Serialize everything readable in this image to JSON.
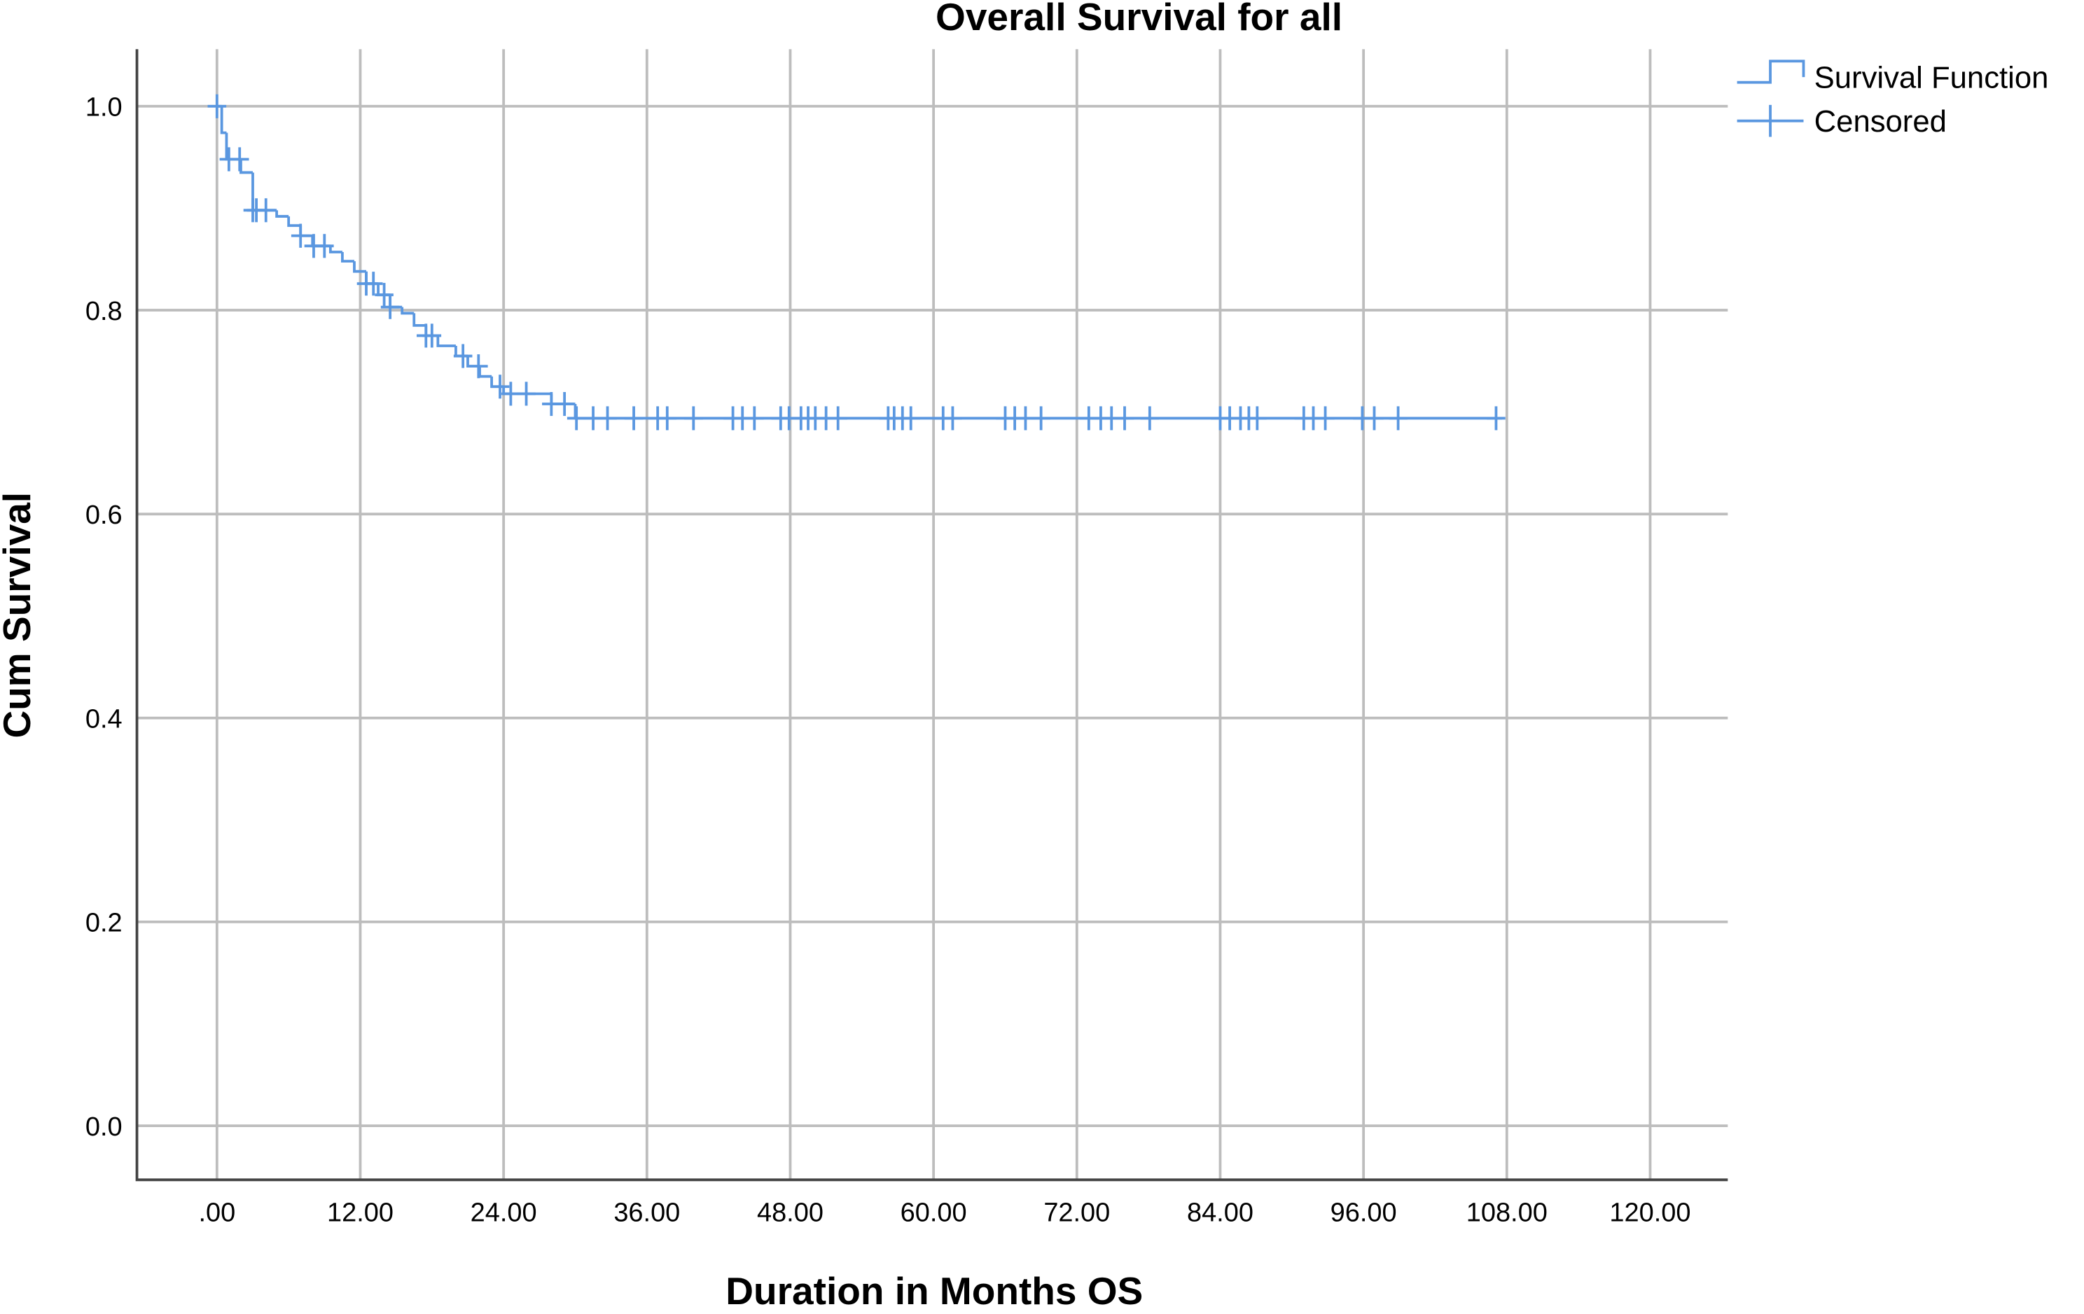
{
  "chart_data": {
    "type": "step",
    "title": "Overall Survival for all",
    "x_label": "Duration in Months OS",
    "y_label": "Cum Survival",
    "xlim": [
      -6.7,
      126.5
    ],
    "ylim": [
      -0.053,
      1.056
    ],
    "xticks": [
      {
        "value": 0,
        "label": ".00"
      },
      {
        "value": 12,
        "label": "12.00"
      },
      {
        "value": 24,
        "label": "24.00"
      },
      {
        "value": 36,
        "label": "36.00"
      },
      {
        "value": 48,
        "label": "48.00"
      },
      {
        "value": 60,
        "label": "60.00"
      },
      {
        "value": 72,
        "label": "72.00"
      },
      {
        "value": 84,
        "label": "84.00"
      },
      {
        "value": 96,
        "label": "96.00"
      },
      {
        "value": 108,
        "label": "108.00"
      },
      {
        "value": 120,
        "label": "120.00"
      }
    ],
    "yticks": [
      {
        "value": 0,
        "label": "0.0"
      },
      0.2,
      0.4,
      0.6,
      0.8,
      {
        "value": 1,
        "label": "1.0"
      }
    ],
    "grid": true,
    "legend": "top-right",
    "series": [
      {
        "name": "Survival Function",
        "color": "#5a97e0",
        "x": [
          0,
          0.4,
          0.8,
          2.0,
          3.0,
          5.0,
          6.0,
          7.0,
          8.0,
          9.5,
          10.5,
          11.5,
          12.5,
          13.5,
          14.5,
          15.5,
          16.5,
          17.5,
          18.5,
          20.0,
          21.0,
          22.0,
          23.0,
          24.0,
          28.0,
          30.0,
          107.6
        ],
        "values": [
          1.0,
          0.974,
          0.948,
          0.935,
          0.898,
          0.892,
          0.883,
          0.873,
          0.863,
          0.857,
          0.848,
          0.838,
          0.826,
          0.815,
          0.803,
          0.797,
          0.785,
          0.775,
          0.765,
          0.755,
          0.745,
          0.735,
          0.725,
          0.718,
          0.708,
          0.694,
          0.694
        ]
      },
      {
        "name": "Censored",
        "color": "#5a97e0",
        "marker": "+",
        "x": [
          0,
          1,
          1.9,
          3.0,
          3.3,
          4.1,
          7,
          8.1,
          9,
          12.5,
          13.1,
          14,
          14.5,
          17.5,
          18,
          20.6,
          21.9,
          23.7,
          24.6,
          25.9,
          28,
          29.1,
          30.1,
          31.5,
          32.7,
          34.9,
          36.9,
          37.7,
          39.9,
          43.2,
          44,
          45,
          47.2,
          47.9,
          48.9,
          49.5,
          50.1,
          51,
          52,
          56.2,
          56.7,
          57.4,
          58.1,
          60.8,
          61.6,
          66,
          66.8,
          67.7,
          69,
          73,
          74,
          74.9,
          76,
          78.1,
          84,
          84.8,
          85.7,
          86.4,
          87.1,
          91,
          91.8,
          92.8,
          95.9,
          96.9,
          98.9,
          107.1
        ],
        "values": [
          1.0,
          0.948,
          0.948,
          0.898,
          0.898,
          0.898,
          0.873,
          0.863,
          0.863,
          0.826,
          0.826,
          0.815,
          0.803,
          0.775,
          0.775,
          0.755,
          0.745,
          0.725,
          0.718,
          0.718,
          0.708,
          0.708,
          0.694,
          0.694,
          0.694,
          0.694,
          0.694,
          0.694,
          0.694,
          0.694,
          0.694,
          0.694,
          0.694,
          0.694,
          0.694,
          0.694,
          0.694,
          0.694,
          0.694,
          0.694,
          0.694,
          0.694,
          0.694,
          0.694,
          0.694,
          0.694,
          0.694,
          0.694,
          0.694,
          0.694,
          0.694,
          0.694,
          0.694,
          0.694,
          0.694,
          0.694,
          0.694,
          0.694,
          0.694,
          0.694,
          0.694,
          0.694,
          0.694,
          0.694,
          0.694,
          0.694
        ]
      }
    ]
  }
}
